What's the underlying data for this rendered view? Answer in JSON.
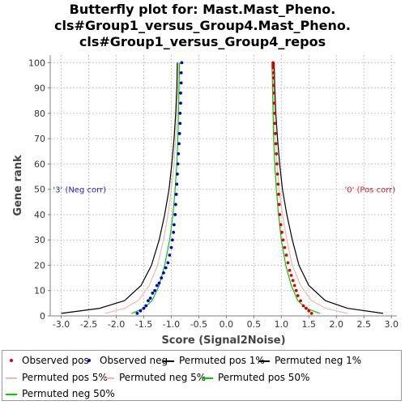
{
  "chart_data": {
    "type": "scatter",
    "title": [
      "Butterfly plot for: Mast.Mast_Pheno.",
      "cls#Group1_versus_Group4.Mast_Pheno.",
      "cls#Group1_versus_Group4_repos"
    ],
    "xlabel": "Score (Signal2Noise)",
    "ylabel": "Gene rank",
    "xlim": [
      -3.2,
      3.1
    ],
    "ylim": [
      0,
      103
    ],
    "xticks": [
      -3.0,
      -2.5,
      -2.0,
      -1.5,
      -1.0,
      -0.5,
      0.0,
      0.5,
      1.0,
      1.5,
      2.0,
      2.5,
      3.0
    ],
    "yticks": [
      0,
      10,
      20,
      30,
      40,
      50,
      60,
      70,
      80,
      90,
      100
    ],
    "grid": true,
    "annotations": [
      {
        "text": "'3' (Neg corr)",
        "x": -3.15,
        "y": 50,
        "color": "#2222cc"
      },
      {
        "text": "'0' (Pos corr)",
        "x": 2.15,
        "y": 50,
        "color": "#cc2222"
      }
    ],
    "series": [
      {
        "name": "Observed pos",
        "kind": "points",
        "color": "#dd0000",
        "x": [
          1.55,
          1.5,
          1.45,
          1.4,
          1.35,
          1.3,
          1.27,
          1.24,
          1.21,
          1.18,
          1.15,
          1.12,
          1.09,
          1.06,
          1.03,
          1.01,
          0.99,
          0.97,
          0.96,
          0.95,
          0.94,
          0.93,
          0.92,
          0.91,
          0.9,
          0.89,
          0.88,
          0.88,
          0.87,
          0.87,
          0.86,
          0.86,
          0.86,
          0.85,
          0.85,
          0.85
        ],
        "y": [
          1,
          2,
          3,
          4,
          6,
          8,
          10,
          12,
          14,
          16,
          18,
          21,
          24,
          27,
          30,
          33,
          36,
          40,
          44,
          48,
          52,
          56,
          60,
          64,
          68,
          72,
          76,
          80,
          84,
          88,
          91,
          94,
          96,
          98,
          99,
          100
        ]
      },
      {
        "name": "Observed neg",
        "kind": "points",
        "color": "#0000cc",
        "x": [
          -1.62,
          -1.56,
          -1.5,
          -1.46,
          -1.42,
          -1.38,
          -1.34,
          -1.3,
          -1.26,
          -1.22,
          -1.18,
          -1.14,
          -1.1,
          -1.06,
          -1.03,
          -1.0,
          -0.98,
          -0.96,
          -0.95,
          -0.93,
          -0.92,
          -0.91,
          -0.9,
          -0.89,
          -0.88,
          -0.87,
          -0.86,
          -0.85,
          -0.84,
          -0.84,
          -0.83,
          -0.83,
          -0.82,
          -0.82,
          -0.81
        ],
        "y": [
          1,
          2,
          3,
          4,
          6,
          7,
          9,
          10,
          12,
          13,
          15,
          17,
          19,
          21,
          24,
          27,
          30,
          33,
          36,
          40,
          44,
          48,
          52,
          56,
          60,
          64,
          68,
          72,
          76,
          80,
          84,
          88,
          92,
          96,
          100
        ]
      },
      {
        "name": "Permuted pos 1%",
        "kind": "line",
        "color": "#000000",
        "width": 1.2,
        "x": [
          0.87,
          0.88,
          0.9,
          0.93,
          0.97,
          1.02,
          1.1,
          1.2,
          1.32,
          1.5,
          1.8,
          2.2,
          2.85
        ],
        "y": [
          100,
          90,
          80,
          70,
          60,
          50,
          40,
          30,
          20,
          12,
          6,
          3,
          1
        ]
      },
      {
        "name": "Permuted neg 1%",
        "kind": "line",
        "color": "#000000",
        "width": 1.2,
        "x": [
          -0.89,
          -0.9,
          -0.92,
          -0.95,
          -0.99,
          -1.04,
          -1.12,
          -1.22,
          -1.36,
          -1.55,
          -1.85,
          -2.3,
          -3.0
        ],
        "y": [
          100,
          90,
          80,
          70,
          60,
          50,
          40,
          30,
          20,
          12,
          6,
          3,
          1
        ]
      },
      {
        "name": "Permuted pos 5%",
        "kind": "line",
        "color": "#f0b8a8",
        "width": 1.2,
        "x": [
          0.85,
          0.86,
          0.87,
          0.89,
          0.92,
          0.96,
          1.02,
          1.1,
          1.2,
          1.35,
          1.55,
          1.8,
          2.2
        ],
        "y": [
          100,
          90,
          80,
          70,
          60,
          50,
          40,
          30,
          20,
          12,
          6,
          3,
          1
        ]
      },
      {
        "name": "Permuted neg 5%",
        "kind": "line",
        "color": "#f0b8a8",
        "width": 1.2,
        "x": [
          -0.87,
          -0.88,
          -0.9,
          -0.92,
          -0.95,
          -1.0,
          -1.06,
          -1.14,
          -1.25,
          -1.4,
          -1.6,
          -1.85,
          -2.2
        ],
        "y": [
          100,
          90,
          80,
          70,
          60,
          50,
          40,
          30,
          20,
          12,
          6,
          3,
          1
        ]
      },
      {
        "name": "Permuted pos 50%",
        "kind": "line",
        "color": "#00cc00",
        "width": 1.2,
        "x": [
          0.83,
          0.84,
          0.85,
          0.86,
          0.88,
          0.91,
          0.95,
          1.0,
          1.08,
          1.18,
          1.3,
          1.45,
          1.7
        ],
        "y": [
          100,
          90,
          80,
          70,
          60,
          50,
          40,
          30,
          20,
          12,
          6,
          3,
          1
        ]
      },
      {
        "name": "Permuted neg 50%",
        "kind": "line",
        "color": "#00cc00",
        "width": 1.2,
        "x": [
          -0.85,
          -0.86,
          -0.87,
          -0.88,
          -0.9,
          -0.93,
          -0.97,
          -1.03,
          -1.12,
          -1.22,
          -1.35,
          -1.5,
          -1.72
        ],
        "y": [
          100,
          90,
          80,
          70,
          60,
          50,
          40,
          30,
          20,
          12,
          6,
          3,
          1
        ]
      }
    ]
  }
}
